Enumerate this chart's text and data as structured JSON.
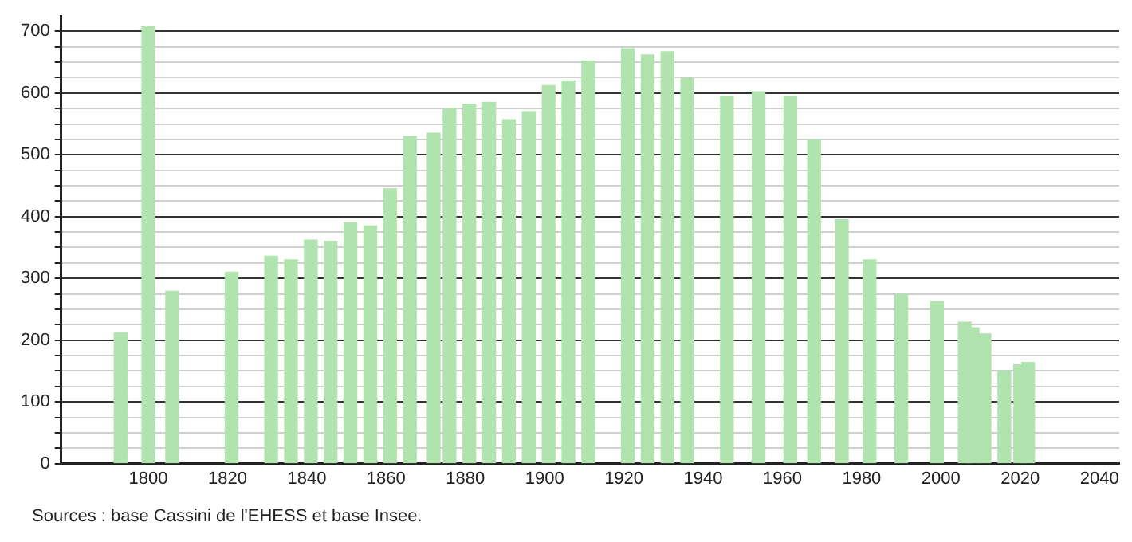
{
  "chart_data": {
    "type": "bar",
    "x": [
      1793,
      1800,
      1806,
      1821,
      1831,
      1836,
      1841,
      1846,
      1851,
      1856,
      1861,
      1866,
      1872,
      1876,
      1881,
      1886,
      1891,
      1896,
      1901,
      1906,
      1911,
      1921,
      1926,
      1931,
      1936,
      1946,
      1954,
      1962,
      1968,
      1975,
      1982,
      1990,
      1999,
      2006,
      2008,
      2011,
      2016,
      2020,
      2022
    ],
    "values": [
      212,
      708,
      279,
      310,
      336,
      330,
      362,
      360,
      390,
      385,
      445,
      530,
      535,
      575,
      582,
      585,
      557,
      570,
      612,
      620,
      652,
      672,
      662,
      667,
      624,
      595,
      602,
      595,
      524,
      395,
      330,
      274,
      262,
      229,
      220,
      210,
      150,
      160,
      164
    ],
    "color": "#b1e3ae",
    "xlim": [
      1778,
      2045
    ],
    "xticks": [
      1800,
      1820,
      1840,
      1860,
      1880,
      1900,
      1920,
      1940,
      1960,
      1980,
      2000,
      2020,
      2040
    ],
    "ylim": [
      0,
      725
    ],
    "yticks": [
      0,
      {
        "value": 25,
        "label": null
      },
      {
        "value": 50,
        "label": null
      },
      {
        "value": 75,
        "label": null
      },
      100,
      {
        "value": 125,
        "label": null
      },
      {
        "value": 150,
        "label": null
      },
      {
        "value": 175,
        "label": null
      },
      200,
      {
        "value": 225,
        "label": null
      },
      {
        "value": 250,
        "label": null
      },
      {
        "value": 275,
        "label": null
      },
      300,
      {
        "value": 325,
        "label": null
      },
      {
        "value": 350,
        "label": null
      },
      {
        "value": 375,
        "label": null
      },
      400,
      {
        "value": 425,
        "label": null
      },
      {
        "value": 450,
        "label": null
      },
      {
        "value": 475,
        "label": null
      },
      500,
      {
        "value": 525,
        "label": null
      },
      {
        "value": 550,
        "label": null
      },
      {
        "value": 575,
        "label": null
      },
      600,
      {
        "value": 625,
        "label": null
      },
      {
        "value": 650,
        "label": null
      },
      {
        "value": 675,
        "label": null
      },
      700
    ],
    "grid": "y",
    "legend": false,
    "annotations": [
      "Sources : base Cassini de l'EHESS et base Insee."
    ]
  }
}
